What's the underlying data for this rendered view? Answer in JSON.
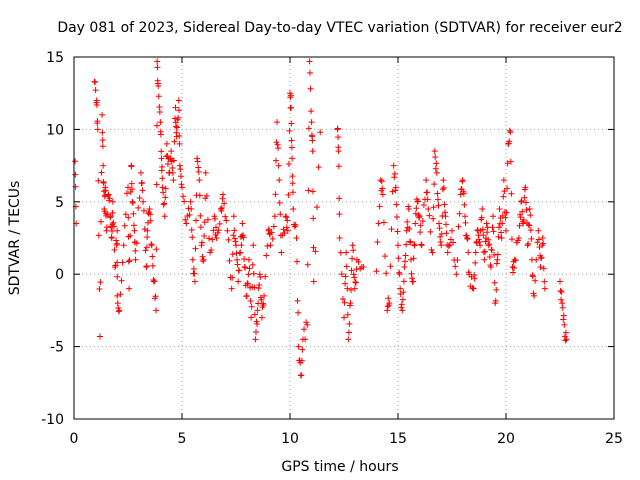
{
  "chart_data": {
    "type": "scatter",
    "title": "Day 081 of 2023, Sidereal Day-to-day VTEC variation (SDTVAR) for receiver eur2",
    "xlabel": "GPS time / hours",
    "ylabel": "SDTVAR / TECUs",
    "xlim": [
      0,
      25
    ],
    "ylim": [
      -10,
      15
    ],
    "xticks": [
      "0",
      "5",
      "10",
      "15",
      "20",
      "25"
    ],
    "yticks": [
      "-10",
      "-5",
      "0",
      "5",
      "10",
      "15"
    ],
    "grid": true,
    "marker": "+",
    "color": "#ff0000",
    "series": [
      {
        "name": "SDTVAR",
        "segments": [
          {
            "t": 0.05,
            "v": 7.8
          },
          {
            "t": 0.1,
            "v": 3.5
          },
          {
            "t": 0.95,
            "v": 13.3
          },
          {
            "t": 1.05,
            "v": 12.0
          },
          {
            "t": 1.1,
            "v": 10.0
          },
          {
            "t": 1.2,
            "v": -4.3
          },
          {
            "t": 1.3,
            "v": 11.0
          },
          {
            "t": 1.35,
            "v": 7.5
          },
          {
            "t": 1.4,
            "v": 4.5
          },
          {
            "t": 1.45,
            "v": 6.0
          },
          {
            "t": 1.5,
            "v": 3.0
          },
          {
            "t": 1.6,
            "v": 5.5
          },
          {
            "t": 1.7,
            "v": 4.0
          },
          {
            "t": 1.75,
            "v": 2.5
          },
          {
            "t": 1.8,
            "v": 5.0
          },
          {
            "t": 1.9,
            "v": 0.5
          },
          {
            "t": 2.0,
            "v": 3.0
          },
          {
            "t": 2.0,
            "v": -1.5
          },
          {
            "t": 2.1,
            "v": -2.5
          },
          {
            "t": 2.3,
            "v": 2.0
          },
          {
            "t": 2.5,
            "v": 6.0
          },
          {
            "t": 2.55,
            "v": -1.0
          },
          {
            "t": 2.65,
            "v": 7.5
          },
          {
            "t": 2.7,
            "v": 5.0
          },
          {
            "t": 2.8,
            "v": 3.0
          },
          {
            "t": 2.85,
            "v": 1.0
          },
          {
            "t": 3.1,
            "v": 7.0
          },
          {
            "t": 3.2,
            "v": 5.0
          },
          {
            "t": 3.35,
            "v": 0.5
          },
          {
            "t": 3.4,
            "v": 3.0
          },
          {
            "t": 3.5,
            "v": 4.5
          },
          {
            "t": 3.6,
            "v": 2.0
          },
          {
            "t": 3.7,
            "v": -0.5
          },
          {
            "t": 3.8,
            "v": -2.5
          },
          {
            "t": 3.85,
            "v": 14.7
          },
          {
            "t": 3.9,
            "v": 13.0
          },
          {
            "t": 4.0,
            "v": 10.5
          },
          {
            "t": 4.05,
            "v": 8.0
          },
          {
            "t": 4.1,
            "v": 6.0
          },
          {
            "t": 4.2,
            "v": 4.0
          },
          {
            "t": 4.3,
            "v": 9.0
          },
          {
            "t": 4.4,
            "v": 7.0
          },
          {
            "t": 4.5,
            "v": 8.5
          },
          {
            "t": 4.6,
            "v": 6.5
          },
          {
            "t": 4.7,
            "v": 11.5
          },
          {
            "t": 4.75,
            "v": 9.5
          },
          {
            "t": 4.85,
            "v": 12.0
          },
          {
            "t": 4.9,
            "v": 7.5
          },
          {
            "t": 5.0,
            "v": 6.0
          },
          {
            "t": 5.2,
            "v": 3.5
          },
          {
            "t": 5.4,
            "v": 5.0
          },
          {
            "t": 5.5,
            "v": 1.0
          },
          {
            "t": 5.6,
            "v": -0.5
          },
          {
            "t": 5.7,
            "v": 8.0
          },
          {
            "t": 5.8,
            "v": 6.5
          },
          {
            "t": 5.9,
            "v": 2.0
          },
          {
            "t": 6.0,
            "v": 1.0
          },
          {
            "t": 6.1,
            "v": 7.0
          },
          {
            "t": 6.3,
            "v": 1.5
          },
          {
            "t": 6.5,
            "v": 4.0
          },
          {
            "t": 6.6,
            "v": 2.5
          },
          {
            "t": 6.8,
            "v": 4.5
          },
          {
            "t": 6.9,
            "v": 5.5
          },
          {
            "t": 7.1,
            "v": 3.0
          },
          {
            "t": 7.3,
            "v": -1.0
          },
          {
            "t": 7.4,
            "v": 4.0
          },
          {
            "t": 7.5,
            "v": 2.0
          },
          {
            "t": 7.6,
            "v": -0.5
          },
          {
            "t": 7.7,
            "v": 1.5
          },
          {
            "t": 7.8,
            "v": 3.5
          },
          {
            "t": 7.9,
            "v": 0.5
          },
          {
            "t": 8.0,
            "v": -1.5
          },
          {
            "t": 8.1,
            "v": 1.0
          },
          {
            "t": 8.2,
            "v": -3.0
          },
          {
            "t": 8.3,
            "v": 2.0
          },
          {
            "t": 8.4,
            "v": -4.5
          },
          {
            "t": 8.5,
            "v": -2.5
          },
          {
            "t": 8.6,
            "v": 0.0
          },
          {
            "t": 8.7,
            "v": -3.0
          },
          {
            "t": 8.8,
            "v": -1.5
          },
          {
            "t": 9.0,
            "v": 3.0
          },
          {
            "t": 9.1,
            "v": 2.0
          },
          {
            "t": 9.3,
            "v": 4.0
          },
          {
            "t": 9.4,
            "v": 10.5
          },
          {
            "t": 9.5,
            "v": 6.5
          },
          {
            "t": 9.6,
            "v": 1.5
          },
          {
            "t": 9.8,
            "v": 4.0
          },
          {
            "t": 9.9,
            "v": 3.0
          },
          {
            "t": 10.0,
            "v": 12.5
          },
          {
            "t": 10.05,
            "v": 11.5
          },
          {
            "t": 10.1,
            "v": 8.0
          },
          {
            "t": 10.15,
            "v": 4.5
          },
          {
            "t": 10.3,
            "v": 2.5
          },
          {
            "t": 10.4,
            "v": -5.0
          },
          {
            "t": 10.5,
            "v": -7.0
          },
          {
            "t": 10.6,
            "v": -4.5
          },
          {
            "t": 10.8,
            "v": -3.5
          },
          {
            "t": 10.9,
            "v": 14.7
          },
          {
            "t": 11.0,
            "v": 10.5
          },
          {
            "t": 11.05,
            "v": 8.5
          },
          {
            "t": 11.1,
            "v": -0.5
          },
          {
            "t": 11.4,
            "v": 9.8
          },
          {
            "t": 12.2,
            "v": 10.0
          },
          {
            "t": 12.25,
            "v": 8.5
          },
          {
            "t": 12.3,
            "v": 2.5
          },
          {
            "t": 12.5,
            "v": -3.0
          },
          {
            "t": 12.6,
            "v": 1.5
          },
          {
            "t": 12.7,
            "v": -4.5
          },
          {
            "t": 12.8,
            "v": -2.0
          },
          {
            "t": 12.9,
            "v": 2.0
          },
          {
            "t": 13.0,
            "v": -1.0
          },
          {
            "t": 13.1,
            "v": 1.0
          },
          {
            "t": 13.4,
            "v": 0.5
          },
          {
            "t": 14.0,
            "v": 0.2
          },
          {
            "t": 14.2,
            "v": 6.5
          },
          {
            "t": 14.3,
            "v": 5.5
          },
          {
            "t": 14.5,
            "v": -2.5
          },
          {
            "t": 14.6,
            "v": -2.0
          },
          {
            "t": 14.8,
            "v": 7.5
          },
          {
            "t": 14.9,
            "v": 6.0
          },
          {
            "t": 15.0,
            "v": 2.0
          },
          {
            "t": 15.1,
            "v": -1.0
          },
          {
            "t": 15.2,
            "v": -2.5
          },
          {
            "t": 15.3,
            "v": 0.5
          },
          {
            "t": 15.4,
            "v": 3.0
          },
          {
            "t": 15.5,
            "v": 4.5
          },
          {
            "t": 15.6,
            "v": 1.0
          },
          {
            "t": 15.7,
            "v": -0.5
          },
          {
            "t": 15.8,
            "v": 3.5
          },
          {
            "t": 15.9,
            "v": 5.0
          },
          {
            "t": 16.0,
            "v": 4.0
          },
          {
            "t": 16.1,
            "v": 2.0
          },
          {
            "t": 16.3,
            "v": 6.5
          },
          {
            "t": 16.4,
            "v": 4.5
          },
          {
            "t": 16.6,
            "v": 1.5
          },
          {
            "t": 16.7,
            "v": 8.5
          },
          {
            "t": 16.8,
            "v": 7.0
          },
          {
            "t": 16.9,
            "v": 3.5
          },
          {
            "t": 17.0,
            "v": 2.0
          },
          {
            "t": 17.1,
            "v": 6.5
          },
          {
            "t": 17.2,
            "v": 4.0
          },
          {
            "t": 17.3,
            "v": 1.5
          },
          {
            "t": 17.5,
            "v": 3.0
          },
          {
            "t": 17.7,
            "v": 0.0
          },
          {
            "t": 17.9,
            "v": 5.5
          },
          {
            "t": 18.0,
            "v": 6.5
          },
          {
            "t": 18.1,
            "v": 4.0
          },
          {
            "t": 18.2,
            "v": 2.5
          },
          {
            "t": 18.3,
            "v": 0.0
          },
          {
            "t": 18.5,
            "v": -1.0
          },
          {
            "t": 18.6,
            "v": 1.5
          },
          {
            "t": 18.7,
            "v": 3.0
          },
          {
            "t": 18.8,
            "v": 2.0
          },
          {
            "t": 18.9,
            "v": 4.5
          },
          {
            "t": 19.0,
            "v": 1.0
          },
          {
            "t": 19.1,
            "v": 3.5
          },
          {
            "t": 19.2,
            "v": 2.0
          },
          {
            "t": 19.3,
            "v": 0.5
          },
          {
            "t": 19.4,
            "v": 4.0
          },
          {
            "t": 19.5,
            "v": -2.0
          },
          {
            "t": 19.6,
            "v": 1.0
          },
          {
            "t": 19.7,
            "v": 4.5
          },
          {
            "t": 19.8,
            "v": 2.5
          },
          {
            "t": 19.9,
            "v": 6.5
          },
          {
            "t": 20.0,
            "v": 3.0
          },
          {
            "t": 20.1,
            "v": 9.0
          },
          {
            "t": 20.2,
            "v": 9.8
          },
          {
            "t": 20.3,
            "v": 0.5
          },
          {
            "t": 20.4,
            "v": 1.0
          },
          {
            "t": 20.6,
            "v": 2.5
          },
          {
            "t": 20.7,
            "v": 5.0
          },
          {
            "t": 20.8,
            "v": 3.5
          },
          {
            "t": 20.9,
            "v": 6.0
          },
          {
            "t": 21.0,
            "v": 2.0
          },
          {
            "t": 21.1,
            "v": 4.5
          },
          {
            "t": 21.2,
            "v": 1.0
          },
          {
            "t": 21.3,
            "v": -1.5
          },
          {
            "t": 21.5,
            "v": 3.0
          },
          {
            "t": 21.6,
            "v": 0.5
          },
          {
            "t": 21.7,
            "v": 2.5
          },
          {
            "t": 21.8,
            "v": -1.0
          },
          {
            "t": 22.5,
            "v": -0.5
          },
          {
            "t": 22.6,
            "v": -2.0
          },
          {
            "t": 22.7,
            "v": -3.5
          },
          {
            "t": 22.8,
            "v": -4.5
          }
        ]
      }
    ]
  }
}
